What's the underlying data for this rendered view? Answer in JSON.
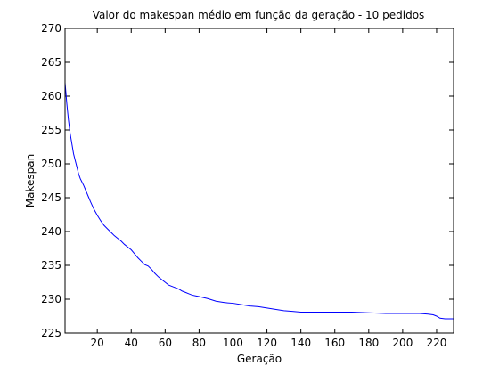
{
  "chart_data": {
    "type": "line",
    "title": "Valor do makespan médio em função da geração - 10 pedidos",
    "xlabel": "Geração",
    "ylabel": "Makespan",
    "xlim": [
      1,
      230
    ],
    "ylim": [
      225,
      270
    ],
    "x_ticks": [
      20,
      40,
      60,
      80,
      100,
      120,
      140,
      160,
      180,
      200,
      220
    ],
    "y_ticks": [
      225,
      230,
      235,
      240,
      245,
      250,
      255,
      260,
      265,
      270
    ],
    "grid": false,
    "line_color": "#0000ff",
    "series": [
      {
        "x": [
          1,
          2,
          3,
          4,
          5,
          6,
          7,
          8,
          9,
          10,
          11,
          12,
          13,
          14,
          15,
          16,
          18,
          20,
          22,
          24,
          26,
          28,
          30,
          32,
          34,
          36,
          38,
          40,
          42,
          44,
          46,
          48,
          50,
          52,
          54,
          56,
          58,
          60,
          62,
          64,
          66,
          68,
          70,
          72,
          74,
          76,
          78,
          80,
          85,
          90,
          95,
          100,
          105,
          110,
          115,
          120,
          125,
          130,
          135,
          140,
          150,
          160,
          170,
          180,
          190,
          200,
          210,
          215,
          218,
          220,
          222,
          225,
          230
        ],
        "y": [
          262,
          259,
          256.5,
          254.5,
          253,
          251.5,
          250.5,
          249.5,
          248.5,
          247.8,
          247.3,
          246.8,
          246.2,
          245.6,
          245,
          244.4,
          243.3,
          242.4,
          241.6,
          240.9,
          240.4,
          239.9,
          239.4,
          239,
          238.6,
          238.1,
          237.7,
          237.3,
          236.7,
          236.1,
          235.6,
          235.1,
          234.9,
          234.4,
          233.8,
          233.3,
          232.9,
          232.5,
          232.1,
          231.9,
          231.7,
          231.5,
          231.2,
          231,
          230.8,
          230.6,
          230.5,
          230.4,
          230.1,
          229.7,
          229.5,
          229.4,
          229.2,
          229,
          228.9,
          228.7,
          228.5,
          228.3,
          228.2,
          228.1,
          228.1,
          228.1,
          228.1,
          228,
          227.9,
          227.9,
          227.9,
          227.8,
          227.7,
          227.5,
          227.2,
          227.1,
          227.1
        ]
      }
    ]
  }
}
